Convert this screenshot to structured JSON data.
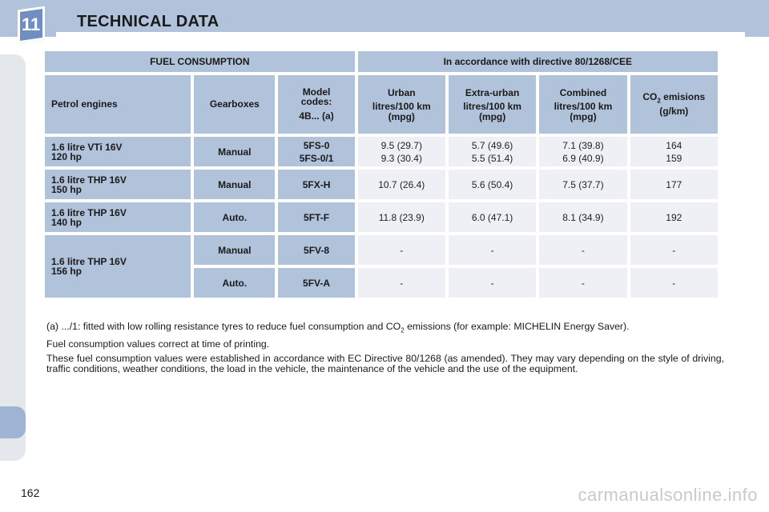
{
  "chapter": "11",
  "title": "TECHNICAL DATA",
  "table": {
    "header_left": "FUEL CONSUMPTION",
    "header_right": "In accordance with directive 80/1268/CEE",
    "columns": {
      "engines": "Petrol engines",
      "gearboxes": "Gearboxes",
      "model_codes_1": "Model",
      "model_codes_2": "codes:",
      "model_codes_3": "4B... (a)",
      "urban_1": "Urban",
      "urban_2": "litres/100 km",
      "urban_3": "(mpg)",
      "extra_1": "Extra-urban",
      "extra_2": "litres/100 km",
      "extra_3": "(mpg)",
      "combined_1": "Combined",
      "combined_2": "litres/100 km",
      "combined_3": "(mpg)",
      "co2_a": "CO",
      "co2_sub": "2",
      "co2_b": " emisions",
      "co2_unit": "(g/km)"
    },
    "rows": [
      {
        "engine_1": "1.6 litre VTi 16V",
        "engine_2": "120 hp",
        "gearbox": "Manual",
        "code_1": "5FS-0",
        "code_2": "5FS-0/1",
        "urban_1": "9.5 (29.7)",
        "urban_2": "9.3 (30.4)",
        "extra_1": "5.7 (49.6)",
        "extra_2": "5.5 (51.4)",
        "combined_1": "7.1 (39.8)",
        "combined_2": "6.9 (40.9)",
        "co2_1": "164",
        "co2_2": "159"
      },
      {
        "engine_1": "1.6 litre THP 16V",
        "engine_2": "150 hp",
        "gearbox": "Manual",
        "code": "5FX-H",
        "urban": "10.7 (26.4)",
        "extra": "5.6 (50.4)",
        "combined": "7.5 (37.7)",
        "co2": "177"
      },
      {
        "engine_1": "1.6 litre THP 16V",
        "engine_2": "140 hp",
        "gearbox": "Auto.",
        "code": "5FT-F",
        "urban": "11.8 (23.9)",
        "extra": "6.0 (47.1)",
        "combined": "8.1 (34.9)",
        "co2": "192"
      },
      {
        "engine_1": "1.6 litre THP 16V",
        "engine_2": "156 hp",
        "gearbox": "Manual",
        "code": "5FV-8",
        "urban": "-",
        "extra": "-",
        "combined": "-",
        "co2": "-"
      },
      {
        "gearbox": "Auto.",
        "code": "5FV-A",
        "urban": "-",
        "extra": "-",
        "combined": "-",
        "co2": "-"
      }
    ]
  },
  "notes": {
    "note_a_1": "(a) .../1: fitted with low rolling resistance tyres to reduce fuel consumption and CO",
    "note_a_sub": "2",
    "note_a_2": " emissions (for example: MICHELIN Energy Saver).",
    "note_b": "Fuel consumption values correct at time of printing.",
    "note_c": "These fuel consumption values were established in accordance with EC Directive 80/1268 (as amended). They may vary depending on the style of driving, traffic conditions, weather conditions, the load in the vehicle, the maintenance of the vehicle and the use of the equipment."
  },
  "page_number": "162",
  "watermark": "carmanualsonline.info",
  "colors": {
    "band": "#b1c2db",
    "badge": "#6f8fc2",
    "cell": "#eef0f5"
  }
}
